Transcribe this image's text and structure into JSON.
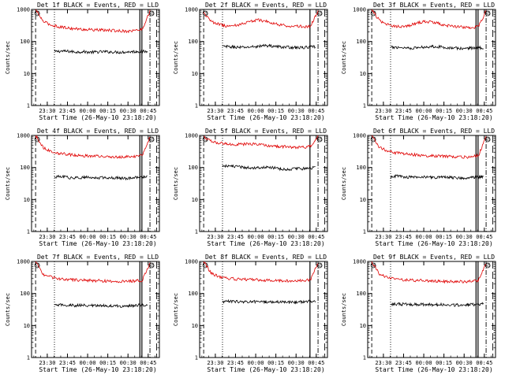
{
  "window": {
    "title": ""
  },
  "colors": {
    "background": "#ffffff",
    "axis": "#000000",
    "events": "#000000",
    "lld": "#e00000"
  },
  "chart_data": [
    {
      "type": "line",
      "title": "Det 1f BLACK = Events, RED = LLD",
      "xlabel": "Start Time (26-May-10 23:18:20)",
      "ylabel": "Counts/sec",
      "yscale": "log",
      "ylim": [
        1,
        1000
      ],
      "ytick_labels": [
        "1000",
        "100",
        "10",
        "1"
      ],
      "xtick_labels": [
        "23:30",
        "23:45",
        "00:00",
        "00:15",
        "00:30",
        "00:45"
      ],
      "x_range_minutes_after_start": [
        0,
        95
      ],
      "series": [
        {
          "name": "BLACK = Events",
          "color": "#000000",
          "start_min": 17,
          "end_min": 86,
          "values": [
            48,
            50,
            49,
            47,
            48,
            46,
            47,
            48,
            47,
            46,
            47,
            48,
            49,
            48
          ]
        },
        {
          "name": "RED = LLD",
          "color": "#e00000",
          "start_min": 3,
          "end_min": 88,
          "values": [
            1000,
            420,
            330,
            290,
            270,
            250,
            240,
            235,
            230,
            225,
            220,
            215,
            210,
            220,
            240,
            900
          ]
        }
      ],
      "vlines": [
        {
          "minute": 3,
          "style": "dashed",
          "label": "SS"
        },
        {
          "minute": 17,
          "style": "dotted",
          "label": ""
        },
        {
          "minute": 80.5,
          "style": "solid",
          "label": ""
        },
        {
          "minute": 82,
          "style": "solid",
          "label": ""
        },
        {
          "minute": 88,
          "style": "dashdot",
          "label": "SS"
        },
        {
          "minute": 93,
          "style": "longdash",
          "label": ""
        }
      ]
    },
    {
      "type": "line",
      "title": "Det 2f BLACK = Events, RED = LLD",
      "xlabel": "Start Time (26-May-10 23:18:20)",
      "ylabel": "Counts/sec",
      "yscale": "log",
      "ylim": [
        1,
        1000
      ],
      "ytick_labels": [
        "1000",
        "100",
        "10",
        "1"
      ],
      "xtick_labels": [
        "23:30",
        "23:45",
        "00:00",
        "00:15",
        "00:30",
        "00:45"
      ],
      "x_range_minutes_after_start": [
        0,
        95
      ],
      "series": [
        {
          "name": "BLACK = Events",
          "color": "#000000",
          "start_min": 17,
          "end_min": 86,
          "values": [
            70,
            68,
            66,
            65,
            68,
            70,
            75,
            72,
            68,
            66,
            65,
            64,
            66,
            68
          ]
        },
        {
          "name": "RED = LLD",
          "color": "#e00000",
          "start_min": 3,
          "end_min": 88,
          "values": [
            800,
            420,
            350,
            300,
            310,
            350,
            420,
            470,
            440,
            380,
            330,
            310,
            300,
            290,
            300,
            900
          ]
        }
      ],
      "vlines": [
        {
          "minute": 3,
          "style": "dashed",
          "label": "SS"
        },
        {
          "minute": 17,
          "style": "dotted",
          "label": ""
        },
        {
          "minute": 82,
          "style": "solid",
          "label": ""
        },
        {
          "minute": 88,
          "style": "dashdot",
          "label": "SS"
        },
        {
          "minute": 93,
          "style": "longdash",
          "label": ""
        }
      ]
    },
    {
      "type": "line",
      "title": "Det 3f BLACK = Events, RED = LLD",
      "xlabel": "Start Time (26-May-10 23:18:20)",
      "ylabel": "Counts/sec",
      "yscale": "log",
      "ylim": [
        1,
        1000
      ],
      "ytick_labels": [
        "1000",
        "100",
        "10",
        "1"
      ],
      "xtick_labels": [
        "23:30",
        "23:45",
        "00:00",
        "00:15",
        "00:30",
        "00:45"
      ],
      "x_range_minutes_after_start": [
        0,
        95
      ],
      "series": [
        {
          "name": "BLACK = Events",
          "color": "#000000",
          "start_min": 17,
          "end_min": 86,
          "values": [
            65,
            66,
            64,
            62,
            65,
            68,
            70,
            68,
            64,
            62,
            60,
            62,
            63,
            64
          ]
        },
        {
          "name": "RED = LLD",
          "color": "#e00000",
          "start_min": 3,
          "end_min": 88,
          "values": [
            1000,
            450,
            340,
            300,
            290,
            320,
            380,
            420,
            400,
            350,
            310,
            290,
            280,
            270,
            290,
            900
          ]
        }
      ],
      "vlines": [
        {
          "minute": 3,
          "style": "dashed",
          "label": "SS"
        },
        {
          "minute": 17,
          "style": "dotted",
          "label": ""
        },
        {
          "minute": 80.5,
          "style": "solid",
          "label": ""
        },
        {
          "minute": 82,
          "style": "solid",
          "label": ""
        },
        {
          "minute": 88,
          "style": "dashdot",
          "label": "SS"
        },
        {
          "minute": 93,
          "style": "longdash",
          "label": ""
        }
      ]
    },
    {
      "type": "line",
      "title": "Det 4f BLACK = Events, RED = LLD",
      "xlabel": "Start Time (26-May-10 23:18:20)",
      "ylabel": "Counts/sec",
      "yscale": "log",
      "ylim": [
        1,
        1000
      ],
      "ytick_labels": [
        "1000",
        "100",
        "10",
        "1"
      ],
      "xtick_labels": [
        "23:30",
        "23:45",
        "00:00",
        "00:15",
        "00:30",
        "00:45"
      ],
      "x_range_minutes_after_start": [
        0,
        95
      ],
      "series": [
        {
          "name": "BLACK = Events",
          "color": "#000000",
          "start_min": 17,
          "end_min": 86,
          "values": [
            50,
            52,
            48,
            47,
            49,
            48,
            47,
            49,
            48,
            47,
            46,
            48,
            49,
            50
          ]
        },
        {
          "name": "RED = LLD",
          "color": "#e00000",
          "start_min": 3,
          "end_min": 88,
          "values": [
            1000,
            420,
            320,
            280,
            260,
            245,
            235,
            230,
            225,
            220,
            215,
            210,
            215,
            220,
            240,
            900
          ]
        }
      ],
      "vlines": [
        {
          "minute": 3,
          "style": "dashed",
          "label": "SS"
        },
        {
          "minute": 17,
          "style": "dotted",
          "label": ""
        },
        {
          "minute": 80.5,
          "style": "solid",
          "label": ""
        },
        {
          "minute": 82,
          "style": "solid",
          "label": ""
        },
        {
          "minute": 88,
          "style": "dashdot",
          "label": "SS"
        },
        {
          "minute": 93,
          "style": "longdash",
          "label": ""
        }
      ]
    },
    {
      "type": "line",
      "title": "Det 5f BLACK = Events, RED = LLD",
      "xlabel": "Start Time (26-May-10 23:18:20)",
      "ylabel": "Counts/sec",
      "yscale": "log",
      "ylim": [
        1,
        1000
      ],
      "ytick_labels": [
        "1000",
        "100",
        "10",
        "1"
      ],
      "xtick_labels": [
        "23:30",
        "23:45",
        "00:00",
        "00:15",
        "00:30",
        "00:45"
      ],
      "x_range_minutes_after_start": [
        0,
        95
      ],
      "series": [
        {
          "name": "BLACK = Events",
          "color": "#000000",
          "start_min": 17,
          "end_min": 86,
          "values": [
            115,
            110,
            105,
            100,
            98,
            100,
            102,
            98,
            92,
            88,
            90,
            92,
            95,
            100
          ]
        },
        {
          "name": "RED = LLD",
          "color": "#e00000",
          "start_min": 3,
          "end_min": 88,
          "values": [
            900,
            650,
            580,
            540,
            520,
            530,
            550,
            530,
            500,
            470,
            450,
            440,
            430,
            430,
            450,
            900
          ]
        }
      ],
      "vlines": [
        {
          "minute": 3,
          "style": "dashed",
          "label": "SS"
        },
        {
          "minute": 17,
          "style": "dotted",
          "label": ""
        },
        {
          "minute": 82,
          "style": "solid",
          "label": ""
        },
        {
          "minute": 88,
          "style": "dashdot",
          "label": "SS"
        },
        {
          "minute": 93,
          "style": "longdash",
          "label": ""
        }
      ]
    },
    {
      "type": "line",
      "title": "Det 6f BLACK = Events, RED = LLD",
      "xlabel": "Start Time (26-May-10 23:18:20)",
      "ylabel": "Counts/sec",
      "yscale": "log",
      "ylim": [
        1,
        1000
      ],
      "ytick_labels": [
        "1000",
        "100",
        "10",
        "1"
      ],
      "xtick_labels": [
        "23:30",
        "23:45",
        "00:00",
        "00:15",
        "00:30",
        "00:45"
      ],
      "x_range_minutes_after_start": [
        0,
        95
      ],
      "series": [
        {
          "name": "BLACK = Events",
          "color": "#000000",
          "start_min": 17,
          "end_min": 86,
          "values": [
            52,
            54,
            50,
            49,
            51,
            50,
            49,
            50,
            49,
            48,
            47,
            48,
            50,
            52
          ]
        },
        {
          "name": "RED = LLD",
          "color": "#e00000",
          "start_min": 3,
          "end_min": 88,
          "values": [
            1000,
            430,
            330,
            290,
            270,
            255,
            245,
            235,
            230,
            225,
            220,
            215,
            210,
            215,
            235,
            900
          ]
        }
      ],
      "vlines": [
        {
          "minute": 3,
          "style": "dashed",
          "label": "SS"
        },
        {
          "minute": 17,
          "style": "dotted",
          "label": ""
        },
        {
          "minute": 80.5,
          "style": "solid",
          "label": ""
        },
        {
          "minute": 82,
          "style": "solid",
          "label": ""
        },
        {
          "minute": 88,
          "style": "dashdot",
          "label": "SS"
        },
        {
          "minute": 93,
          "style": "longdash",
          "label": ""
        }
      ]
    },
    {
      "type": "line",
      "title": "Det 7f BLACK = Events, RED = LLD",
      "xlabel": "Start Time (26-May-10 23:18:20)",
      "ylabel": "Counts/sec",
      "yscale": "log",
      "ylim": [
        1,
        1000
      ],
      "ytick_labels": [
        "1000",
        "100",
        "10",
        "1"
      ],
      "xtick_labels": [
        "23:30",
        "23:45",
        "00:00",
        "00:15",
        "00:30",
        "00:45"
      ],
      "x_range_minutes_after_start": [
        0,
        95
      ],
      "series": [
        {
          "name": "BLACK = Events",
          "color": "#000000",
          "start_min": 17,
          "end_min": 86,
          "values": [
            42,
            44,
            43,
            42,
            43,
            42,
            41,
            42,
            41,
            40,
            41,
            42,
            43,
            44
          ]
        },
        {
          "name": "RED = LLD",
          "color": "#e00000",
          "start_min": 3,
          "end_min": 88,
          "values": [
            1000,
            400,
            320,
            290,
            275,
            265,
            260,
            255,
            250,
            245,
            240,
            235,
            240,
            245,
            260,
            900
          ]
        }
      ],
      "vlines": [
        {
          "minute": 3,
          "style": "dashed",
          "label": "SS"
        },
        {
          "minute": 17,
          "style": "dotted",
          "label": ""
        },
        {
          "minute": 80.5,
          "style": "solid",
          "label": ""
        },
        {
          "minute": 82,
          "style": "solid",
          "label": ""
        },
        {
          "minute": 88,
          "style": "dashdot",
          "label": "SS"
        },
        {
          "minute": 93,
          "style": "longdash",
          "label": ""
        }
      ]
    },
    {
      "type": "line",
      "title": "Det 8f BLACK = Events, RED = LLD",
      "xlabel": "Start Time (26-May-10 23:18:20)",
      "ylabel": "Counts/sec",
      "yscale": "log",
      "ylim": [
        1,
        1000
      ],
      "ytick_labels": [
        "1000",
        "100",
        "10",
        "1"
      ],
      "xtick_labels": [
        "23:30",
        "23:45",
        "00:00",
        "00:15",
        "00:30",
        "00:45"
      ],
      "x_range_minutes_after_start": [
        0,
        95
      ],
      "series": [
        {
          "name": "BLACK = Events",
          "color": "#000000",
          "start_min": 17,
          "end_min": 86,
          "values": [
            55,
            57,
            56,
            55,
            56,
            55,
            54,
            55,
            54,
            53,
            54,
            55,
            56,
            58
          ]
        },
        {
          "name": "RED = LLD",
          "color": "#e00000",
          "start_min": 3,
          "end_min": 88,
          "values": [
            1000,
            420,
            340,
            300,
            285,
            275,
            270,
            265,
            260,
            255,
            250,
            245,
            250,
            255,
            270,
            900
          ]
        }
      ],
      "vlines": [
        {
          "minute": 3,
          "style": "dashed",
          "label": "SS"
        },
        {
          "minute": 17,
          "style": "dotted",
          "label": ""
        },
        {
          "minute": 82,
          "style": "solid",
          "label": ""
        },
        {
          "minute": 88,
          "style": "dashdot",
          "label": "SS"
        },
        {
          "minute": 93,
          "style": "longdash",
          "label": ""
        }
      ]
    },
    {
      "type": "line",
      "title": "Det 9f BLACK = Events, RED = LLD",
      "xlabel": "Start Time (26-May-10 23:18:20)",
      "ylabel": "Counts/sec",
      "yscale": "log",
      "ylim": [
        1,
        1000
      ],
      "ytick_labels": [
        "1000",
        "100",
        "10",
        "1"
      ],
      "xtick_labels": [
        "23:30",
        "23:45",
        "00:00",
        "00:15",
        "00:30",
        "00:45"
      ],
      "x_range_minutes_after_start": [
        0,
        95
      ],
      "series": [
        {
          "name": "BLACK = Events",
          "color": "#000000",
          "start_min": 17,
          "end_min": 86,
          "values": [
            45,
            47,
            46,
            45,
            46,
            45,
            44,
            45,
            44,
            43,
            44,
            45,
            46,
            47
          ]
        },
        {
          "name": "RED = LLD",
          "color": "#e00000",
          "start_min": 3,
          "end_min": 88,
          "values": [
            1000,
            400,
            320,
            285,
            270,
            260,
            255,
            250,
            245,
            240,
            235,
            230,
            235,
            240,
            255,
            900
          ]
        }
      ],
      "vlines": [
        {
          "minute": 3,
          "style": "dashed",
          "label": "SS"
        },
        {
          "minute": 17,
          "style": "dotted",
          "label": ""
        },
        {
          "minute": 80.5,
          "style": "solid",
          "label": ""
        },
        {
          "minute": 82,
          "style": "solid",
          "label": ""
        },
        {
          "minute": 88,
          "style": "dashdot",
          "label": "SS"
        },
        {
          "minute": 93,
          "style": "longdash",
          "label": ""
        }
      ]
    }
  ]
}
